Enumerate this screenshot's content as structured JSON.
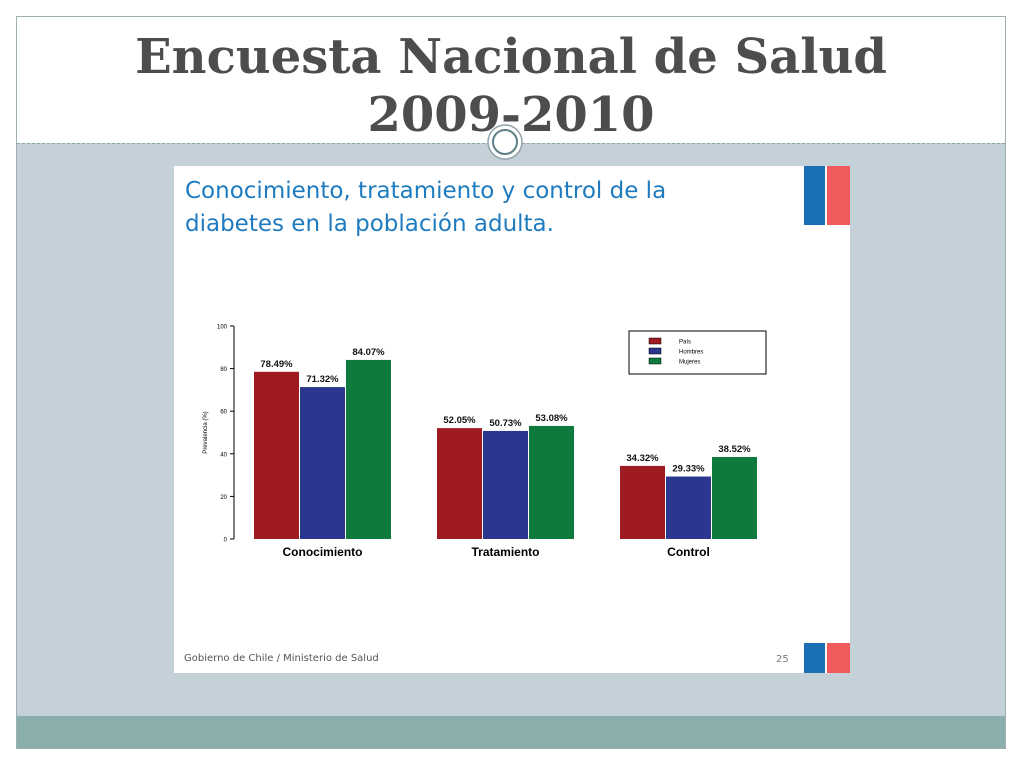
{
  "slide": {
    "title_line1": "Encuesta Nacional de Salud",
    "title_line2": "2009-2010"
  },
  "inner": {
    "title_line1": "Conocimiento, tratamiento y control de la",
    "title_line2": "diabetes en la población adulta.",
    "footer": "Gobierno de Chile / Ministerio de Salud",
    "page_number": "25"
  },
  "chart_data": {
    "type": "bar",
    "categories": [
      "Conocimiento",
      "Tratamiento",
      "Control"
    ],
    "series": [
      {
        "name": "País",
        "color": "#9e1b22",
        "values": [
          78.49,
          52.05,
          34.32
        ],
        "labels": [
          "78.49%",
          "52.05%",
          "34.32%"
        ]
      },
      {
        "name": "Hombres",
        "color": "#2b368f",
        "values": [
          71.32,
          50.73,
          29.33
        ],
        "labels": [
          "71.32%",
          "50.73%",
          "29.33%"
        ]
      },
      {
        "name": "Mujeres",
        "color": "#0f7a3e",
        "values": [
          84.07,
          53.08,
          38.52
        ],
        "labels": [
          "84.07%",
          "53.08%",
          "38.52%"
        ]
      }
    ],
    "ylabel": "Prevalencia (%)",
    "xlabel": "",
    "ylim": [
      0,
      100
    ],
    "yticks": [
      "0",
      "20",
      "40",
      "60",
      "80",
      "100"
    ],
    "legend_position": "top-right",
    "grid": false
  }
}
